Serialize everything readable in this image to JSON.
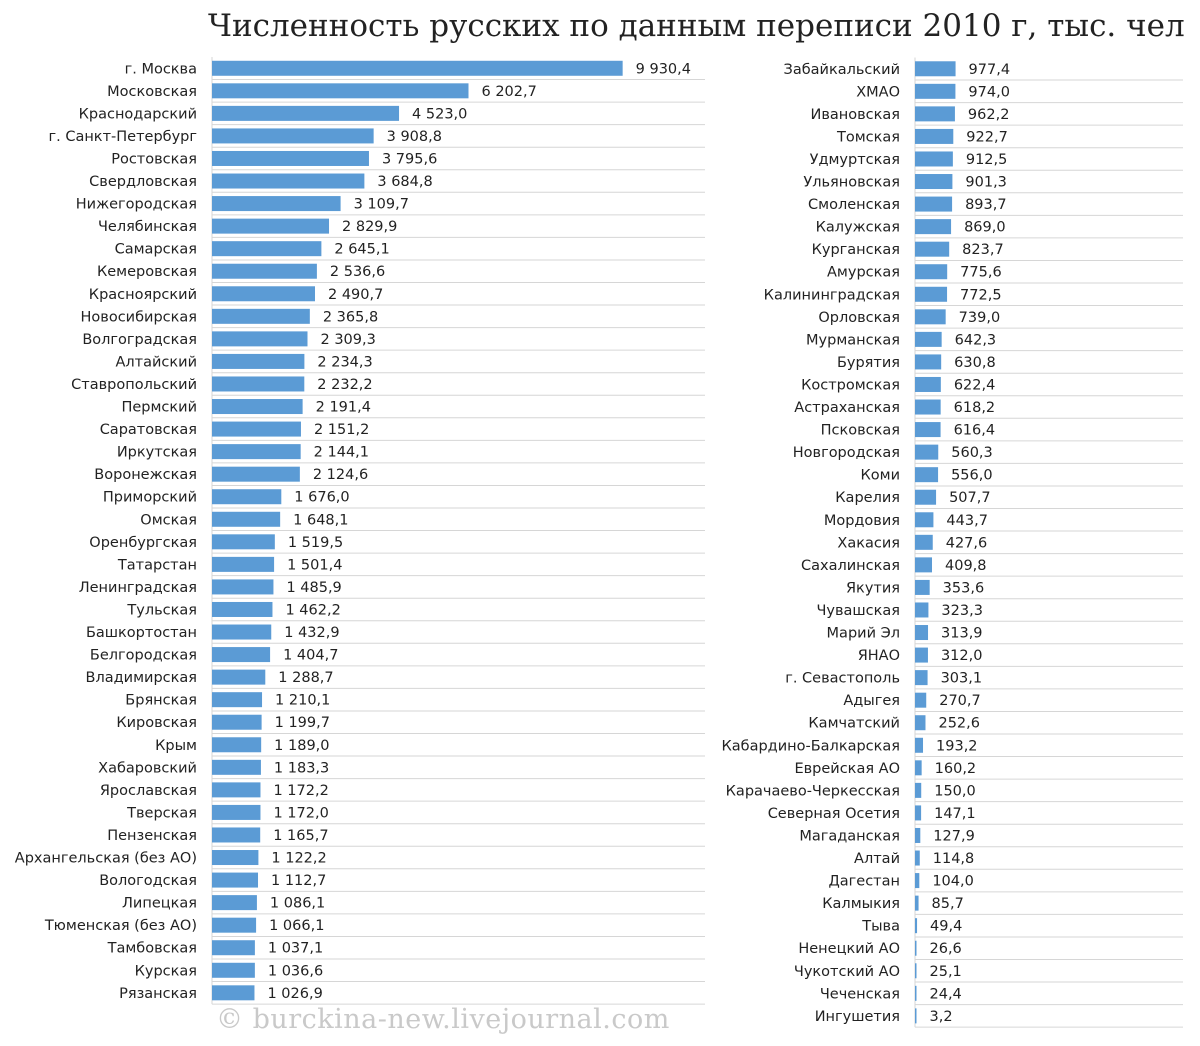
{
  "watermark": "© burckina-new.livejournal.com",
  "colors": {
    "bar": "#5b9bd5",
    "grid": "#d6d6d6",
    "text": "#222222",
    "watermark": "#c9c9c9"
  },
  "chart_data": {
    "type": "bar",
    "orientation": "horizontal",
    "title": "Численность русских по данным переписи 2010 г, тыс. чел",
    "panels": [
      {
        "categories": [
          "г. Москва",
          "Московская",
          "Краснодарский",
          "г. Санкт-Петербург",
          "Ростовская",
          "Свердловская",
          "Нижегородская",
          "Челябинская",
          "Самарская",
          "Кемеровская",
          "Красноярский",
          "Новосибирская",
          "Волгоградская",
          "Алтайский",
          "Ставропольский",
          "Пермский",
          "Саратовская",
          "Иркутская",
          "Воронежская",
          "Приморский",
          "Омская",
          "Оренбургская",
          "Татарстан",
          "Ленинградская",
          "Тульская",
          "Башкортостан",
          "Белгородская",
          "Владимирская",
          "Брянская",
          "Кировская",
          "Крым",
          "Хабаровский",
          "Ярославская",
          "Тверская",
          "Пензенская",
          "Архангельская (без АО)",
          "Вологодская",
          "Липецкая",
          "Тюменская (без АО)",
          "Тамбовская",
          "Курская",
          "Рязанская"
        ],
        "values": [
          9930.4,
          6202.7,
          4523.0,
          3908.8,
          3795.6,
          3684.8,
          3109.7,
          2829.9,
          2645.1,
          2536.6,
          2490.7,
          2365.8,
          2309.3,
          2234.3,
          2232.2,
          2191.4,
          2151.2,
          2144.1,
          2124.6,
          1676.0,
          1648.1,
          1519.5,
          1501.4,
          1485.9,
          1462.2,
          1432.9,
          1404.7,
          1288.7,
          1210.1,
          1199.7,
          1189.0,
          1183.3,
          1172.2,
          1172.0,
          1165.7,
          1122.2,
          1112.7,
          1086.1,
          1066.1,
          1037.1,
          1036.6,
          1026.9
        ],
        "labels": [
          "9 930,4",
          "6 202,7",
          "4 523,0",
          "3 908,8",
          "3 795,6",
          "3 684,8",
          "3 109,7",
          "2 829,9",
          "2 645,1",
          "2 536,6",
          "2 490,7",
          "2 365,8",
          "2 309,3",
          "2 234,3",
          "2 232,2",
          "2 191,4",
          "2 151,2",
          "2 144,1",
          "2 124,6",
          "1 676,0",
          "1 648,1",
          "1 519,5",
          "1 501,4",
          "1 485,9",
          "1 462,2",
          "1 432,9",
          "1 404,7",
          "1 288,7",
          "1 210,1",
          "1 199,7",
          "1 189,0",
          "1 183,3",
          "1 172,2",
          "1 172,0",
          "1 165,7",
          "1 122,2",
          "1 112,7",
          "1 086,1",
          "1 066,1",
          "1 037,1",
          "1 036,6",
          "1 026,9"
        ],
        "xlim": [
          0,
          10000
        ]
      },
      {
        "categories": [
          "Забайкальский",
          "ХМАО",
          "Ивановская",
          "Томская",
          "Удмуртская",
          "Ульяновская",
          "Смоленская",
          "Калужская",
          "Курганская",
          "Амурская",
          "Калининградская",
          "Орловская",
          "Мурманская",
          "Бурятия",
          "Костромская",
          "Астраханская",
          "Псковская",
          "Новгородская",
          "Коми",
          "Карелия",
          "Мордовия",
          "Хакасия",
          "Сахалинская",
          "Якутия",
          "Чувашская",
          "Марий Эл",
          "ЯНАО",
          "г. Севастополь",
          "Адыгея",
          "Камчатский",
          "Кабардино-Балкарская",
          "Еврейская АО",
          "Карачаево-Черкесская",
          "Северная Осетия",
          "Магаданская",
          "Алтай",
          "Дагестан",
          "Калмыкия",
          "Тыва",
          "Ненецкий АО",
          "Чукотский АО",
          "Чеченская",
          "Ингушетия"
        ],
        "values": [
          977.4,
          974.0,
          962.2,
          922.7,
          912.5,
          901.3,
          893.7,
          869.0,
          823.7,
          775.6,
          772.5,
          739.0,
          642.3,
          630.8,
          622.4,
          618.2,
          616.4,
          560.3,
          556.0,
          507.7,
          443.7,
          427.6,
          409.8,
          353.6,
          323.3,
          313.9,
          312.0,
          303.1,
          270.7,
          252.6,
          193.2,
          160.2,
          150.0,
          147.1,
          127.9,
          114.8,
          104.0,
          85.7,
          49.4,
          26.6,
          25.1,
          24.4,
          3.2
        ],
        "labels": [
          "977,4",
          "974,0",
          "962,2",
          "922,7",
          "912,5",
          "901,3",
          "893,7",
          "869,0",
          "823,7",
          "775,6",
          "772,5",
          "739,0",
          "642,3",
          "630,8",
          "622,4",
          "618,2",
          "616,4",
          "560,3",
          "556,0",
          "507,7",
          "443,7",
          "427,6",
          "409,8",
          "353,6",
          "323,3",
          "313,9",
          "312,0",
          "303,1",
          "270,7",
          "252,6",
          "193,2",
          "160,2",
          "150,0",
          "147,1",
          "127,9",
          "114,8",
          "104,0",
          "85,7",
          "49,4",
          "26,6",
          "25,1",
          "24,4",
          "3,2"
        ],
        "xlim": [
          0,
          1000
        ]
      }
    ]
  }
}
